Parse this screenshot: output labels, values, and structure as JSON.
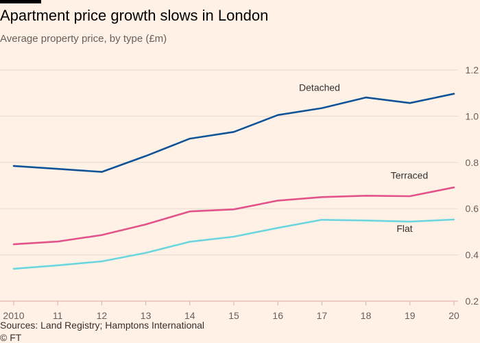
{
  "header": {
    "title": "Apartment price growth slows in London",
    "subtitle": "Average property price, by type (£m)"
  },
  "footer": {
    "source": "Sources: Land Registry; Hamptons International",
    "credit": "© FT"
  },
  "colors": {
    "background": "#fff1e5",
    "grid": "#e6d9ce",
    "axis": "#e6a8a0",
    "tick_text": "#66605c"
  },
  "chart_data": {
    "type": "line",
    "x": [
      2010,
      2011,
      2012,
      2013,
      2014,
      2015,
      2016,
      2017,
      2018,
      2019,
      2020
    ],
    "x_tick_labels": [
      "2010",
      "11",
      "12",
      "13",
      "14",
      "15",
      "16",
      "17",
      "18",
      "19",
      "20"
    ],
    "ylim": [
      0.2,
      1.2
    ],
    "y_ticks": [
      0.2,
      0.4,
      0.6,
      0.8,
      1.0,
      1.2
    ],
    "y_tick_labels": [
      "0.2",
      "0.4",
      "0.6",
      "0.8",
      "1.0",
      "1.2"
    ],
    "y_axis_side": "right",
    "grid": true,
    "title": "Apartment price growth slows in London",
    "subtitle": "Average property price, by type (£m)",
    "series": [
      {
        "name": "Detached",
        "color": "#0f5499",
        "values": [
          0.785,
          0.772,
          0.759,
          0.828,
          0.903,
          0.932,
          1.005,
          1.035,
          1.081,
          1.057,
          1.097
        ]
      },
      {
        "name": "Terraced",
        "color": "#e3528a",
        "values": [
          0.446,
          0.458,
          0.486,
          0.532,
          0.588,
          0.597,
          0.635,
          0.65,
          0.656,
          0.654,
          0.692
        ]
      },
      {
        "name": "Flat",
        "color": "#6bd6e0",
        "values": [
          0.34,
          0.355,
          0.372,
          0.409,
          0.457,
          0.479,
          0.517,
          0.552,
          0.549,
          0.544,
          0.553
        ]
      }
    ]
  }
}
